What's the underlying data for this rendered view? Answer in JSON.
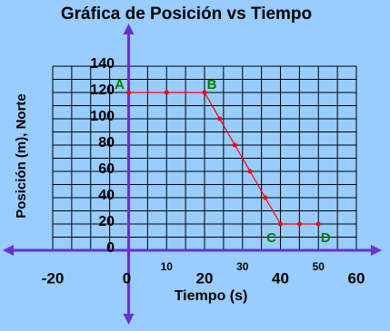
{
  "chart_data": {
    "type": "line",
    "title": "Gráfica de Posición vs Tiempo",
    "xlabel": "Tiempo (s)",
    "ylabel": "Posición (m), Norte",
    "x": [
      0,
      10,
      20,
      24,
      28,
      32,
      36,
      40,
      45,
      50
    ],
    "values": [
      120,
      120,
      120,
      100,
      80,
      60,
      40,
      20,
      20,
      20
    ],
    "point_labels": [
      "A",
      null,
      "B",
      null,
      null,
      null,
      null,
      "C",
      null,
      "D"
    ],
    "color": "#ff0000",
    "axis_color": "#6633cc",
    "label_color": "#008000",
    "xlim": [
      -20,
      60
    ],
    "ylim": [
      0,
      140
    ],
    "xticks": [
      -20,
      0,
      10,
      20,
      30,
      40,
      50,
      60
    ],
    "yticks": [
      0,
      20,
      40,
      60,
      80,
      100,
      120,
      140
    ],
    "grid": true
  }
}
